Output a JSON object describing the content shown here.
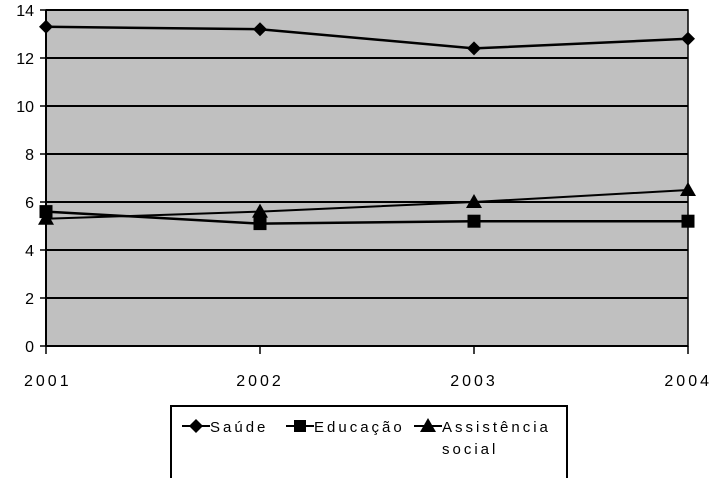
{
  "chart_data": {
    "type": "line",
    "categories": [
      "2001",
      "2002",
      "2003",
      "2004"
    ],
    "ylim": [
      0,
      14
    ],
    "yticks": [
      "0",
      "2",
      "4",
      "6",
      "8",
      "10",
      "12",
      "14"
    ],
    "grid": true,
    "legend_position": "bottom",
    "background_color": "#c0c0c0",
    "series": [
      {
        "name": "Saúde",
        "marker": "diamond",
        "values": [
          13.3,
          13.2,
          12.4,
          12.8
        ]
      },
      {
        "name": "Educação",
        "marker": "square",
        "values": [
          5.6,
          5.1,
          5.2,
          5.2
        ]
      },
      {
        "name": "Assistência social",
        "name_lines": [
          "Assistência",
          "social"
        ],
        "marker": "triangle",
        "values": [
          5.3,
          5.6,
          6.0,
          6.5
        ]
      }
    ]
  }
}
